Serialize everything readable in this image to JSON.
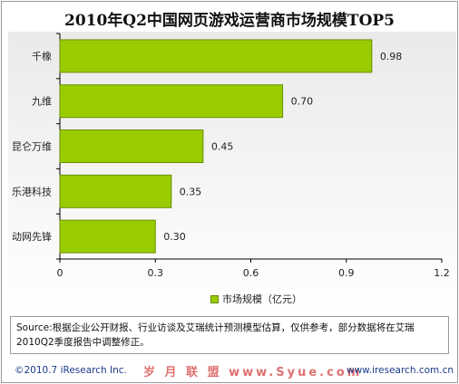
{
  "chart_data": {
    "type": "bar",
    "orientation": "horizontal",
    "title": "2010年Q2中国网页游戏运营商市场规模TOP5",
    "categories": [
      "千橡",
      "九维",
      "昆仑万维",
      "乐港科技",
      "动网先锋"
    ],
    "series": [
      {
        "name": "市场规模（亿元）",
        "values": [
          0.98,
          0.7,
          0.45,
          0.35,
          0.3
        ]
      }
    ],
    "value_labels": [
      "0.98",
      "0.70",
      "0.45",
      "0.35",
      "0.30"
    ],
    "xlim": [
      0,
      1.2
    ],
    "xticks": [
      0,
      0.3,
      0.6,
      0.9,
      1.2
    ],
    "xtick_labels": [
      "0",
      "0.3",
      "0.6",
      "0.9",
      "1.2"
    ],
    "grid": false,
    "legend_position": "bottom",
    "colors": {
      "bar": "#99cc00",
      "bar_border": "#6a8f00"
    }
  },
  "source": {
    "line1": "Source:根据企业公开财报、行业访谈及艾瑞统计预测模型估算，仅供参考，部分数据将在艾瑞",
    "line2": "2010Q2季度报告中调整修正。"
  },
  "footer": {
    "copyright": "©2010.7 iResearch Inc.",
    "watermark": "岁 月 联 盟   www.Syue.com",
    "website": "www.iresearch.com.cn"
  }
}
